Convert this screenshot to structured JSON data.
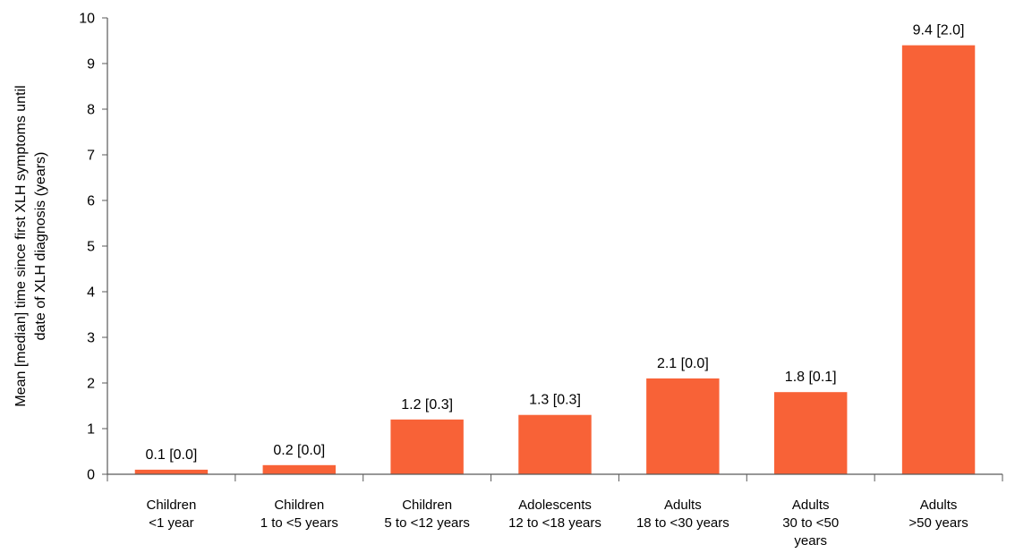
{
  "chart_data": {
    "type": "bar",
    "title": "",
    "xlabel": "",
    "ylabel_lines": [
      "Mean [median] time since first XLH symptoms until",
      "date of XLH diagnosis (years)"
    ],
    "ylim": [
      0,
      10
    ],
    "yticks": [
      "0",
      "1",
      "2",
      "3",
      "4",
      "5",
      "6",
      "7",
      "8",
      "9",
      "10"
    ],
    "categories": [
      [
        "Children",
        "<1 year"
      ],
      [
        "Children",
        "1 to <5 years"
      ],
      [
        "Children",
        "5 to <12 years"
      ],
      [
        "Adolescents",
        "12 to <18 years"
      ],
      [
        "Adults",
        "18 to <30 years"
      ],
      [
        "Adults",
        "30 to <50",
        "years"
      ],
      [
        "Adults",
        ">50 years"
      ]
    ],
    "values": [
      0.1,
      0.2,
      1.2,
      1.3,
      2.1,
      1.8,
      9.4
    ],
    "data_labels": [
      "0.1 [0.0]",
      "0.2 [0.0]",
      "1.2 [0.3]",
      "1.3 [0.3]",
      "2.1 [0.0]",
      "1.8 [0.1]",
      "9.4 [2.0]"
    ],
    "grid": false,
    "legend": "none",
    "colors": {
      "bar": "#F86237",
      "axis": "#595959",
      "text": "#000000"
    }
  }
}
